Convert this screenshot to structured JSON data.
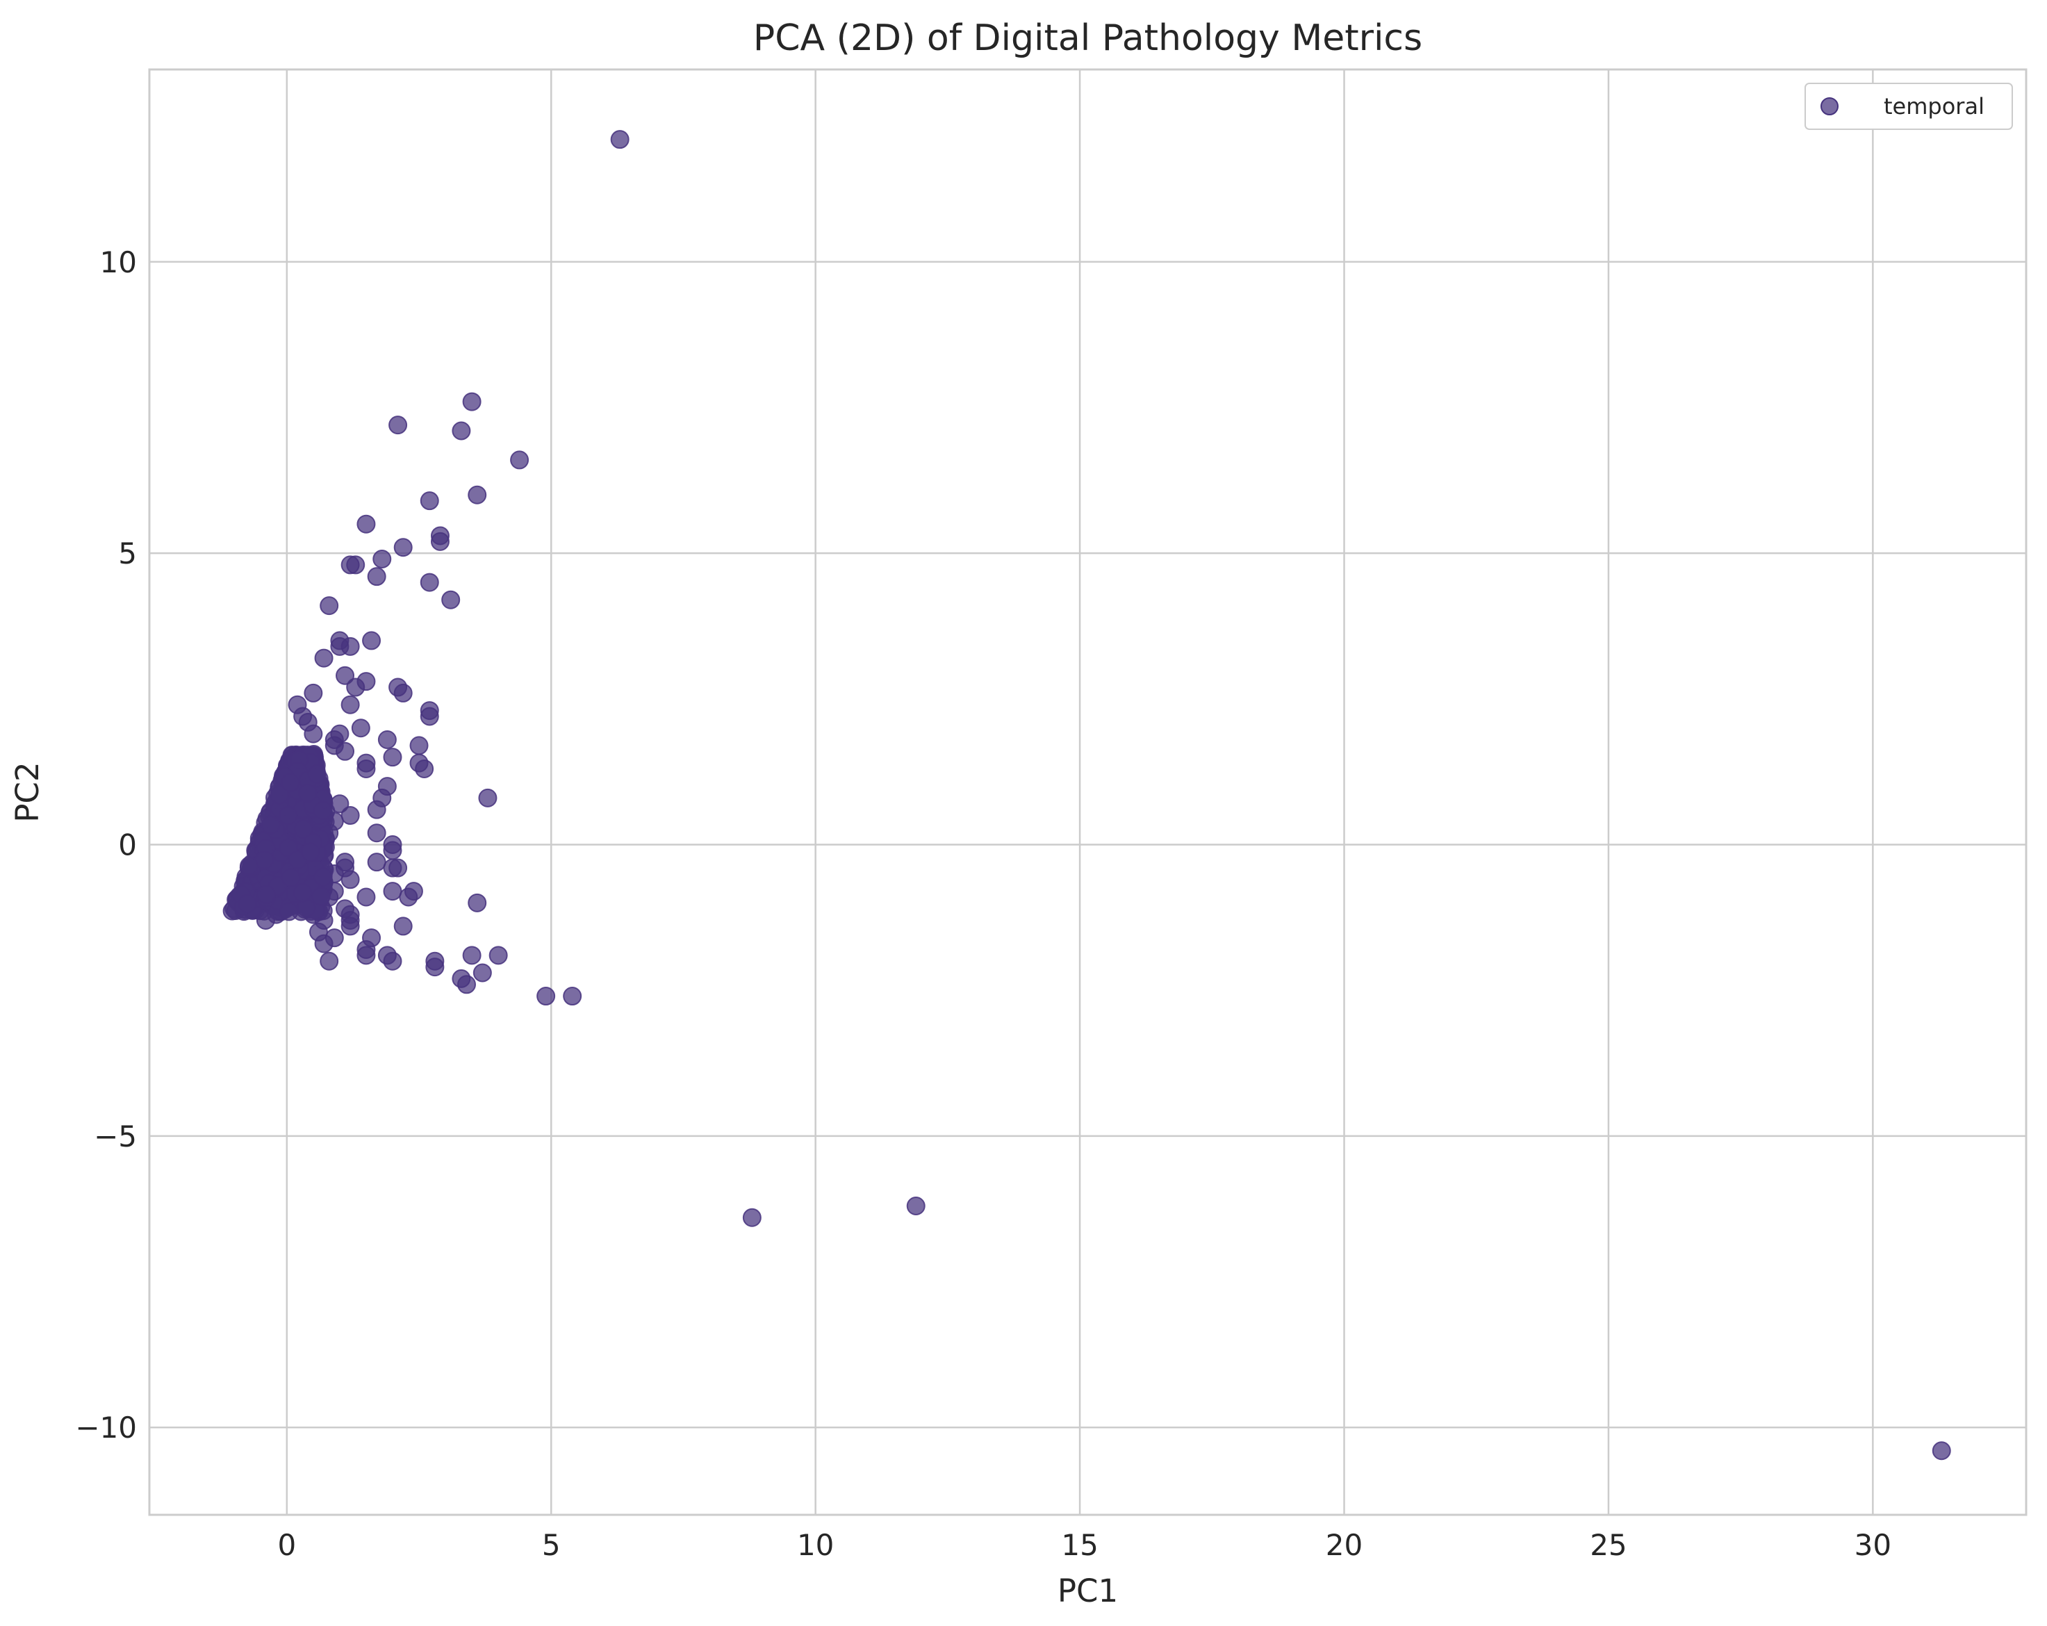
{
  "chart_data": {
    "type": "scatter",
    "title": "PCA (2D) of Digital Pathology Metrics",
    "xlabel": "PC1",
    "ylabel": "PC2",
    "xlim": [
      -2.6,
      32.9
    ],
    "ylim": [
      -11.5,
      13.3
    ],
    "xticks": [
      0,
      5,
      10,
      15,
      20,
      25,
      30
    ],
    "yticks": [
      -10,
      -5,
      0,
      5,
      10
    ],
    "xtick_labels": [
      "0",
      "5",
      "10",
      "15",
      "20",
      "25",
      "30"
    ],
    "ytick_labels": [
      "−10",
      "−5",
      "0",
      "5",
      "10"
    ],
    "grid": true,
    "legend_position": "top-right",
    "marker_color": "#46337e",
    "series": [
      {
        "name": "temporal",
        "points": [
          [
            6.3,
            12.1
          ],
          [
            3.5,
            7.6
          ],
          [
            2.1,
            7.2
          ],
          [
            3.3,
            7.1
          ],
          [
            4.4,
            6.6
          ],
          [
            3.6,
            6.0
          ],
          [
            2.7,
            5.9
          ],
          [
            1.5,
            5.5
          ],
          [
            2.9,
            5.3
          ],
          [
            2.9,
            5.2
          ],
          [
            2.2,
            5.1
          ],
          [
            1.8,
            4.9
          ],
          [
            1.2,
            4.8
          ],
          [
            1.3,
            4.8
          ],
          [
            1.7,
            4.6
          ],
          [
            2.7,
            4.5
          ],
          [
            3.1,
            4.2
          ],
          [
            0.8,
            4.1
          ],
          [
            1.0,
            3.5
          ],
          [
            1.6,
            3.5
          ],
          [
            1.0,
            3.4
          ],
          [
            1.2,
            3.4
          ],
          [
            0.7,
            3.2
          ],
          [
            1.1,
            2.9
          ],
          [
            1.5,
            2.8
          ],
          [
            1.3,
            2.7
          ],
          [
            2.1,
            2.7
          ],
          [
            2.2,
            2.6
          ],
          [
            0.5,
            2.6
          ],
          [
            2.7,
            2.3
          ],
          [
            2.7,
            2.2
          ],
          [
            1.2,
            2.4
          ],
          [
            0.2,
            2.4
          ],
          [
            0.3,
            2.2
          ],
          [
            0.4,
            2.1
          ],
          [
            1.4,
            2.0
          ],
          [
            0.5,
            1.9
          ],
          [
            0.9,
            1.8
          ],
          [
            1.0,
            1.9
          ],
          [
            1.9,
            1.8
          ],
          [
            2.5,
            1.7
          ],
          [
            0.9,
            1.7
          ],
          [
            1.1,
            1.6
          ],
          [
            2.0,
            1.5
          ],
          [
            2.5,
            1.4
          ],
          [
            1.5,
            1.4
          ],
          [
            2.6,
            1.3
          ],
          [
            1.5,
            1.3
          ],
          [
            1.9,
            1.0
          ],
          [
            1.8,
            0.8
          ],
          [
            3.8,
            0.8
          ],
          [
            1.2,
            0.5
          ],
          [
            1.7,
            0.6
          ],
          [
            1.0,
            0.7
          ],
          [
            1.7,
            0.2
          ],
          [
            2.0,
            0.0
          ],
          [
            2.0,
            -0.1
          ],
          [
            1.7,
            -0.3
          ],
          [
            2.0,
            -0.4
          ],
          [
            2.1,
            -0.4
          ],
          [
            1.1,
            -0.3
          ],
          [
            1.1,
            -0.4
          ],
          [
            1.2,
            -0.6
          ],
          [
            0.9,
            -0.8
          ],
          [
            2.0,
            -0.8
          ],
          [
            2.3,
            -0.9
          ],
          [
            2.4,
            -0.8
          ],
          [
            1.5,
            -0.9
          ],
          [
            3.6,
            -1.0
          ],
          [
            1.1,
            -1.1
          ],
          [
            1.2,
            -1.2
          ],
          [
            1.2,
            -1.3
          ],
          [
            0.5,
            -1.2
          ],
          [
            0.7,
            -1.3
          ],
          [
            0.6,
            -1.5
          ],
          [
            0.9,
            -1.6
          ],
          [
            1.6,
            -1.6
          ],
          [
            2.2,
            -1.4
          ],
          [
            0.7,
            -1.7
          ],
          [
            1.2,
            -1.4
          ],
          [
            1.5,
            -1.8
          ],
          [
            1.5,
            -1.9
          ],
          [
            1.9,
            -1.9
          ],
          [
            0.8,
            -2.0
          ],
          [
            2.0,
            -2.0
          ],
          [
            2.8,
            -2.0
          ],
          [
            2.8,
            -2.1
          ],
          [
            3.5,
            -1.9
          ],
          [
            4.0,
            -1.9
          ],
          [
            3.7,
            -2.2
          ],
          [
            3.3,
            -2.3
          ],
          [
            3.4,
            -2.4
          ],
          [
            4.9,
            -2.6
          ],
          [
            5.4,
            -2.6
          ],
          [
            8.8,
            -6.4
          ],
          [
            11.9,
            -6.2
          ],
          [
            31.3,
            -10.4
          ],
          [
            -1.0,
            -1.1
          ],
          [
            -0.9,
            -1.0
          ],
          [
            -0.8,
            -0.9
          ],
          [
            -0.7,
            -0.7
          ],
          [
            -0.6,
            -0.5
          ],
          [
            -0.5,
            -0.3
          ],
          [
            -0.4,
            -0.1
          ],
          [
            -0.3,
            0.1
          ],
          [
            -0.2,
            0.3
          ],
          [
            -0.1,
            0.6
          ],
          [
            0.0,
            0.9
          ],
          [
            0.1,
            1.2
          ],
          [
            -0.4,
            -1.3
          ],
          [
            -0.2,
            -1.2
          ],
          [
            0.0,
            -1.0
          ],
          [
            0.2,
            -0.8
          ],
          [
            0.4,
            -0.6
          ],
          [
            0.5,
            -0.3
          ],
          [
            0.6,
            0.0
          ],
          [
            0.6,
            0.4
          ],
          [
            0.5,
            0.8
          ],
          [
            0.4,
            1.2
          ],
          [
            0.3,
            1.5
          ],
          [
            0.2,
            1.3
          ],
          [
            -0.3,
            -0.6
          ],
          [
            -0.1,
            -0.4
          ],
          [
            0.1,
            -0.2
          ],
          [
            0.3,
            0.1
          ],
          [
            0.2,
            0.5
          ],
          [
            0.0,
            0.4
          ],
          [
            -0.2,
            0.0
          ],
          [
            0.1,
            0.2
          ],
          [
            0.3,
            -0.3
          ],
          [
            0.4,
            0.3
          ],
          [
            0.7,
            -0.2
          ],
          [
            0.8,
            0.2
          ],
          [
            0.9,
            -0.5
          ],
          [
            0.8,
            -0.9
          ],
          [
            0.5,
            1.0
          ],
          [
            0.7,
            0.7
          ],
          [
            0.9,
            0.4
          ],
          [
            0.6,
            -0.8
          ]
        ]
      }
    ]
  }
}
